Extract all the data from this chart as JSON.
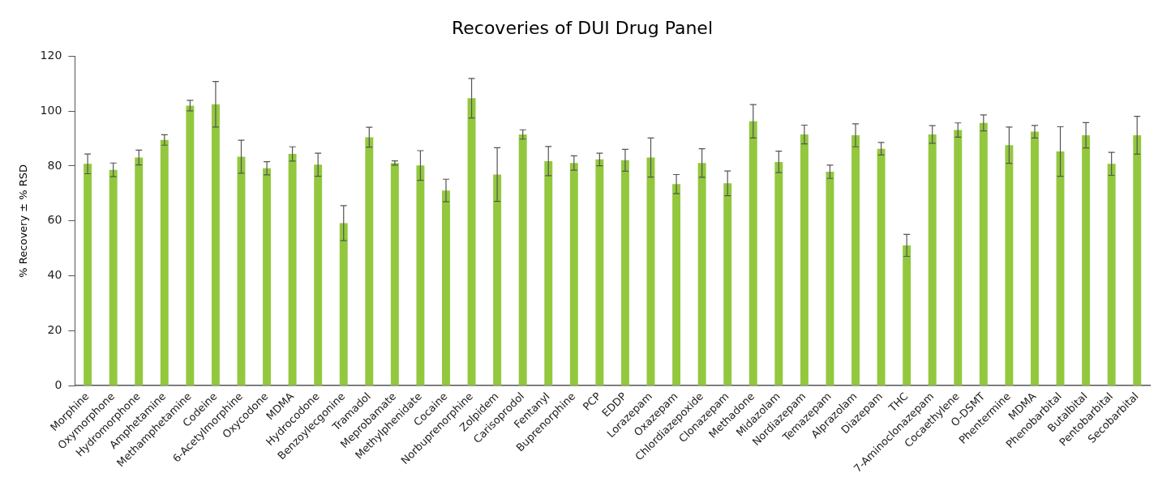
{
  "chart_data": {
    "type": "bar",
    "title": "Recoveries of DUI Drug Panel",
    "ylabel": "% Recovery ± % RSD",
    "categories": [
      "Morphine",
      "Oxymorphone",
      "Hydromorphone",
      "Amphetamine",
      "Methamphetamine",
      "Codeine",
      "6-Acetylmorphine",
      "Oxycodone",
      "MDMA",
      "Hydrocodone",
      "Benzoylecgonine",
      "Tramadol",
      "Meprobamate",
      "Methylphenidate",
      "Cocaine",
      "Norbuprenorphine",
      "Zolpidem",
      "Carisoprodol",
      "Fentanyl",
      "Buprenorphine",
      "PCP",
      "EDDP",
      "Lorazepam",
      "Oxazepam",
      "Chlordiazepoxide",
      "Clonazepam",
      "Methadone",
      "Midazolam",
      "Nordiazepam",
      "Temazepam",
      "Alprazolam",
      "Diazepam",
      "THC",
      "7-Aminoclonazepam",
      "Cocaethylene",
      "O-DSMT",
      "Phentermine",
      "MDMA",
      "Phenobarbital",
      "Butalbital",
      "Pentobarbital",
      "Secobarbital"
    ],
    "values": [
      80.8,
      78.6,
      83.1,
      89.5,
      102.0,
      102.5,
      83.4,
      79.2,
      84.4,
      80.5,
      59.2,
      90.5,
      81.1,
      80.2,
      71.1,
      104.7,
      76.9,
      91.5,
      81.8,
      81.1,
      82.4,
      82.1,
      83.1,
      73.4,
      81.1,
      73.7,
      96.3,
      81.5,
      91.5,
      77.9,
      91.2,
      86.3,
      51.1,
      91.5,
      93.1,
      95.7,
      87.6,
      92.5,
      85.3,
      91.2,
      80.8,
      91.2
    ],
    "errors": [
      3.6,
      2.5,
      2.7,
      1.9,
      1.9,
      8.3,
      6.0,
      2.4,
      2.6,
      4.2,
      6.4,
      3.6,
      0.8,
      5.4,
      4.1,
      7.2,
      9.8,
      1.7,
      5.3,
      2.6,
      2.3,
      4.0,
      7.1,
      3.5,
      5.2,
      4.5,
      6.1,
      3.9,
      3.4,
      2.4,
      4.2,
      2.3,
      4.0,
      3.2,
      2.6,
      2.9,
      6.6,
      2.3,
      9.0,
      4.6,
      4.2,
      6.9
    ],
    "color": "#93c83e",
    "ylim": [
      0,
      120
    ],
    "yticks": [
      0,
      20,
      40,
      60,
      80,
      100,
      120
    ],
    "grid": false,
    "legend": false
  }
}
